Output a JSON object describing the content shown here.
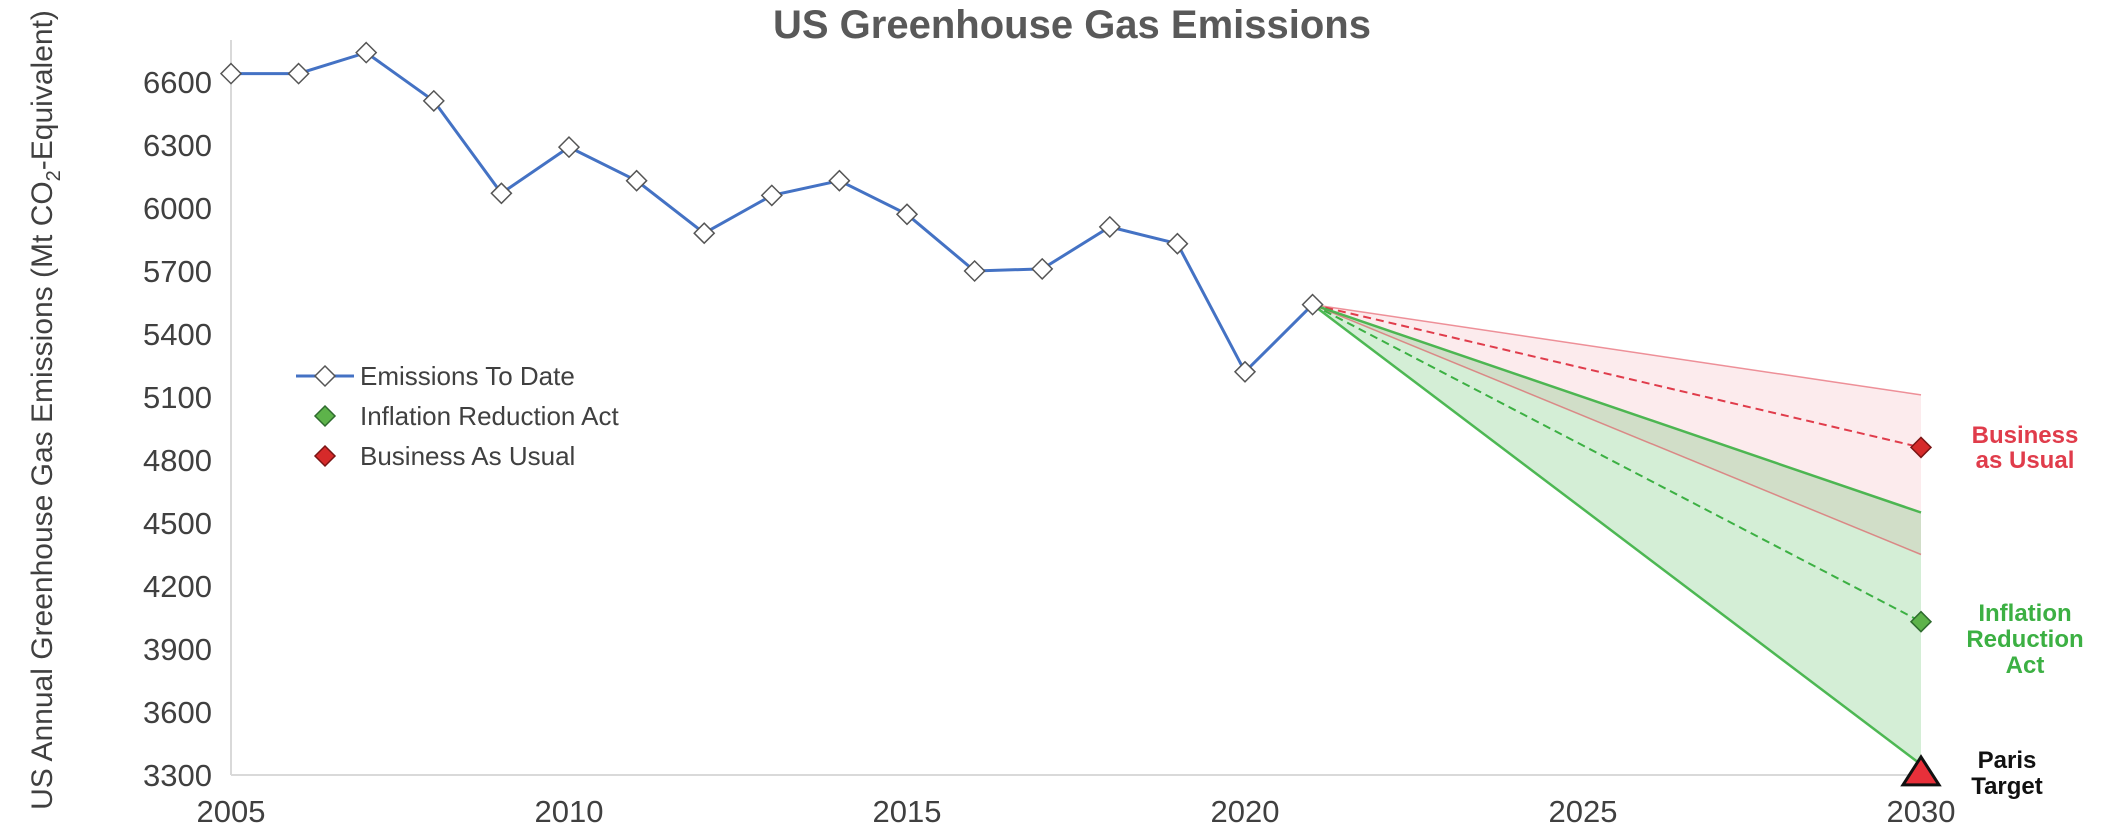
{
  "chart_data": {
    "type": "line",
    "title": "US Greenhouse Gas Emissions",
    "xlabel": "",
    "ylabel": "US Annual Greenhouse Gas Emissions (Mt CO",
    "ylabel_sub": "2",
    "ylabel_suffix": "-Equivalent)",
    "xlim": [
      2005,
      2030
    ],
    "ylim": [
      3300,
      6800
    ],
    "x_ticks": [
      2005,
      2010,
      2015,
      2020,
      2025,
      2030
    ],
    "y_ticks": [
      3300,
      3600,
      3900,
      4200,
      4500,
      4800,
      5100,
      5400,
      5700,
      6000,
      6300,
      6600
    ],
    "grid": false,
    "legend_position": "left-middle",
    "series": [
      {
        "name": "Emissions To Date",
        "color": "#4472C4",
        "marker": "diamond-white",
        "x": [
          2005,
          2006,
          2007,
          2008,
          2009,
          2010,
          2011,
          2012,
          2013,
          2014,
          2015,
          2016,
          2017,
          2018,
          2019,
          2020,
          2021
        ],
        "y": [
          6640,
          6640,
          6740,
          6510,
          6070,
          6290,
          6130,
          5880,
          6060,
          6130,
          5970,
          5700,
          5710,
          5910,
          5830,
          5220,
          5540
        ]
      },
      {
        "name": "Inflation Reduction Act",
        "color": "#3CB043",
        "marker": "diamond-green",
        "projection": {
          "start": [
            2021,
            5540
          ],
          "central_2030": 4030,
          "range_2030": [
            3350,
            4550
          ]
        }
      },
      {
        "name": "Business As Usual",
        "color": "#E03C4B",
        "marker": "diamond-red",
        "projection": {
          "start": [
            2021,
            5540
          ],
          "central_2030": 4860,
          "range_2030": [
            4350,
            5110
          ]
        }
      }
    ],
    "target": {
      "x": 2030,
      "y": 3310,
      "marker": "triangle-red"
    },
    "annotations": [
      {
        "lines": [
          "Business",
          "as Usual"
        ],
        "color": "#E03C4B"
      },
      {
        "lines": [
          "Inflation",
          "Reduction",
          "Act"
        ],
        "color": "#3CB043"
      },
      {
        "lines": [
          "Paris",
          "Target"
        ],
        "color": "#111111"
      }
    ]
  }
}
